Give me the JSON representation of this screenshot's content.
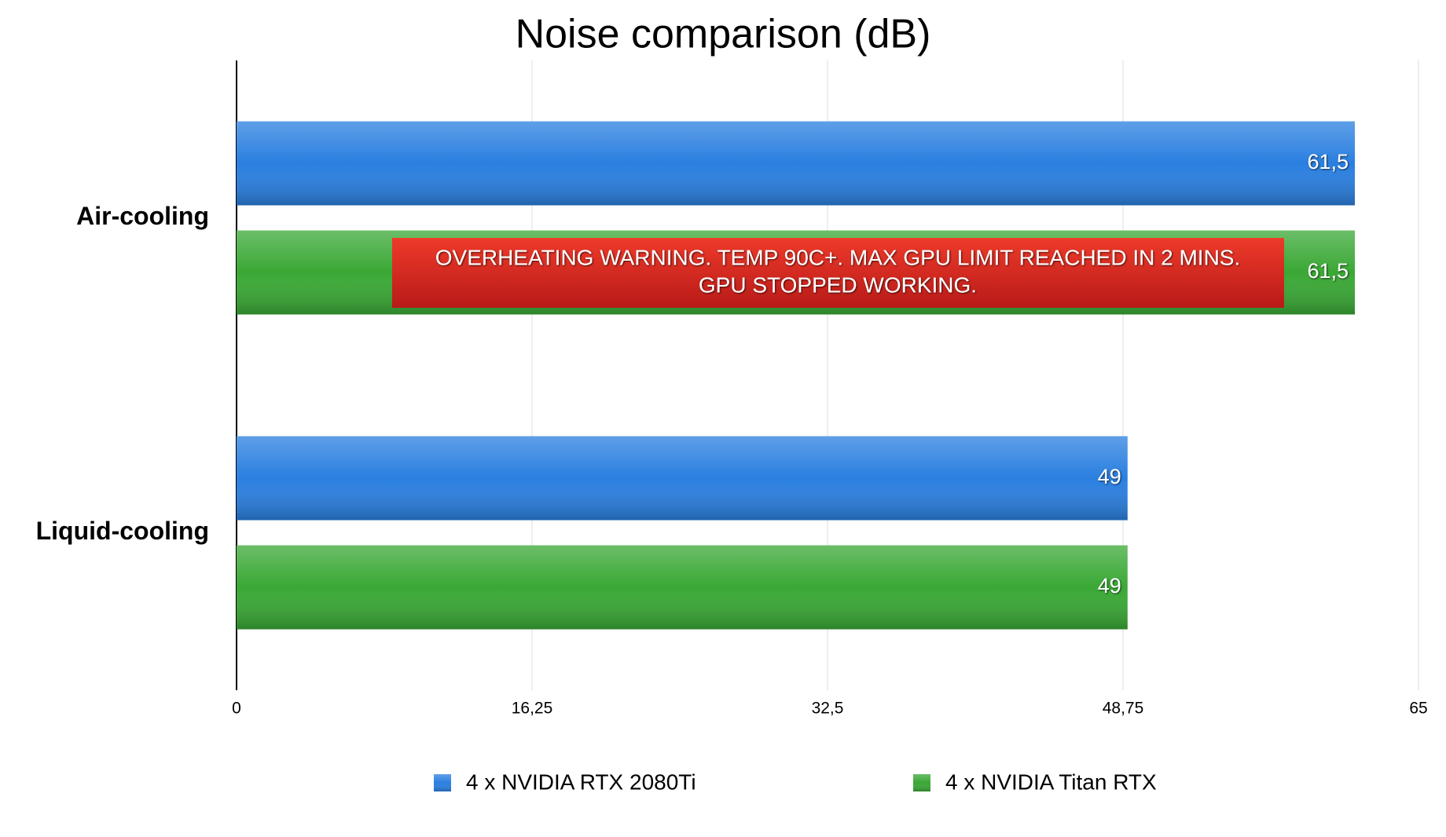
{
  "chart_data": {
    "type": "bar",
    "orientation": "horizontal",
    "title": "Noise comparison (dB)",
    "categories": [
      "Air-cooling",
      "Liquid-cooling"
    ],
    "series": [
      {
        "name": "4 x NVIDIA RTX 2080Ti",
        "color": "#2a7fe0",
        "values": [
          61.5,
          49
        ],
        "value_labels": [
          "61,5",
          "49"
        ]
      },
      {
        "name": "4 x NVIDIA Titan RTX",
        "color": "#3aa835",
        "values": [
          61.5,
          49
        ],
        "value_labels": [
          "61,5",
          "49"
        ]
      }
    ],
    "xlim": [
      0,
      65
    ],
    "xticks": [
      0,
      {
        "value": 16.25,
        "label": "16,25"
      },
      {
        "value": 32.5,
        "label": "32,5"
      },
      {
        "value": 48.75,
        "label": "48,75"
      },
      65
    ],
    "grid": true,
    "legend": "bottom",
    "annotation": [
      "OVERHEATING WARNING. TEMP 90C+. MAX GPU LIMIT REACHED IN 2 MINS.",
      "GPU STOPPED WORKING."
    ]
  }
}
